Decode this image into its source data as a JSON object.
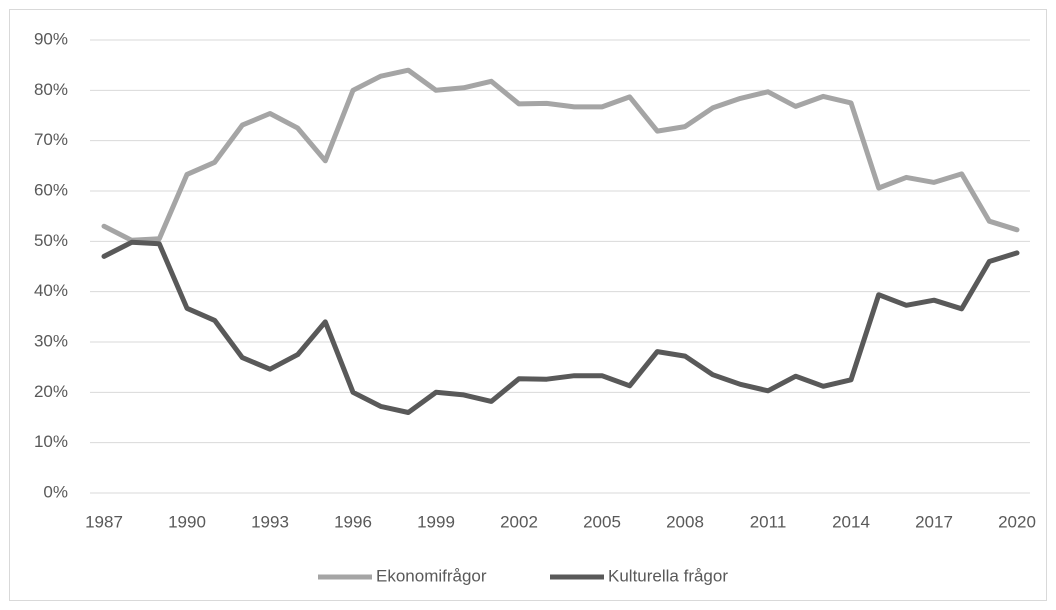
{
  "chart_data": {
    "type": "line",
    "x": [
      1987,
      1988,
      1989,
      1990,
      1991,
      1992,
      1993,
      1994,
      1995,
      1996,
      1997,
      1998,
      1999,
      2000,
      2001,
      2002,
      2003,
      2004,
      2005,
      2006,
      2007,
      2008,
      2009,
      2010,
      2011,
      2012,
      2013,
      2014,
      2015,
      2016,
      2017,
      2018,
      2019,
      2020
    ],
    "series": [
      {
        "name": "Ekonomifrågor",
        "color": "#a5a5a5",
        "values": [
          53,
          50.2,
          50.5,
          63.3,
          65.7,
          73.1,
          75.4,
          72.5,
          66,
          80,
          82.8,
          84,
          80,
          80.5,
          81.8,
          77.3,
          77.4,
          76.7,
          76.7,
          78.7,
          71.9,
          72.8,
          76.5,
          78.4,
          79.7,
          76.8,
          78.8,
          77.5,
          60.6,
          62.7,
          61.7,
          63.4,
          54,
          52.3
        ]
      },
      {
        "name": "Kulturella frågor",
        "color": "#595959",
        "values": [
          47,
          49.8,
          49.5,
          36.7,
          34.3,
          26.9,
          24.6,
          27.5,
          34,
          20,
          17.2,
          16,
          20,
          19.5,
          18.2,
          22.7,
          22.6,
          23.3,
          23.3,
          21.3,
          28.1,
          27.2,
          23.5,
          21.6,
          20.3,
          23.2,
          21.2,
          22.5,
          39.4,
          37.3,
          38.3,
          36.6,
          46,
          47.7
        ]
      }
    ],
    "xlim": [
      1987,
      2020
    ],
    "xticks": [
      1987,
      1990,
      1993,
      1996,
      1999,
      2002,
      2005,
      2008,
      2011,
      2014,
      2017,
      2020
    ],
    "ylim": [
      0,
      90
    ],
    "yticks": [
      {
        "value": 0,
        "label": "0%"
      },
      {
        "value": 10,
        "label": "10%"
      },
      {
        "value": 20,
        "label": "20%"
      },
      {
        "value": 30,
        "label": "30%"
      },
      {
        "value": 40,
        "label": "40%"
      },
      {
        "value": 50,
        "label": "50%"
      },
      {
        "value": 60,
        "label": "60%"
      },
      {
        "value": 70,
        "label": "70%"
      },
      {
        "value": 80,
        "label": "80%"
      },
      {
        "value": 90,
        "label": "90%"
      }
    ],
    "grid": true,
    "legend": "bottom"
  }
}
